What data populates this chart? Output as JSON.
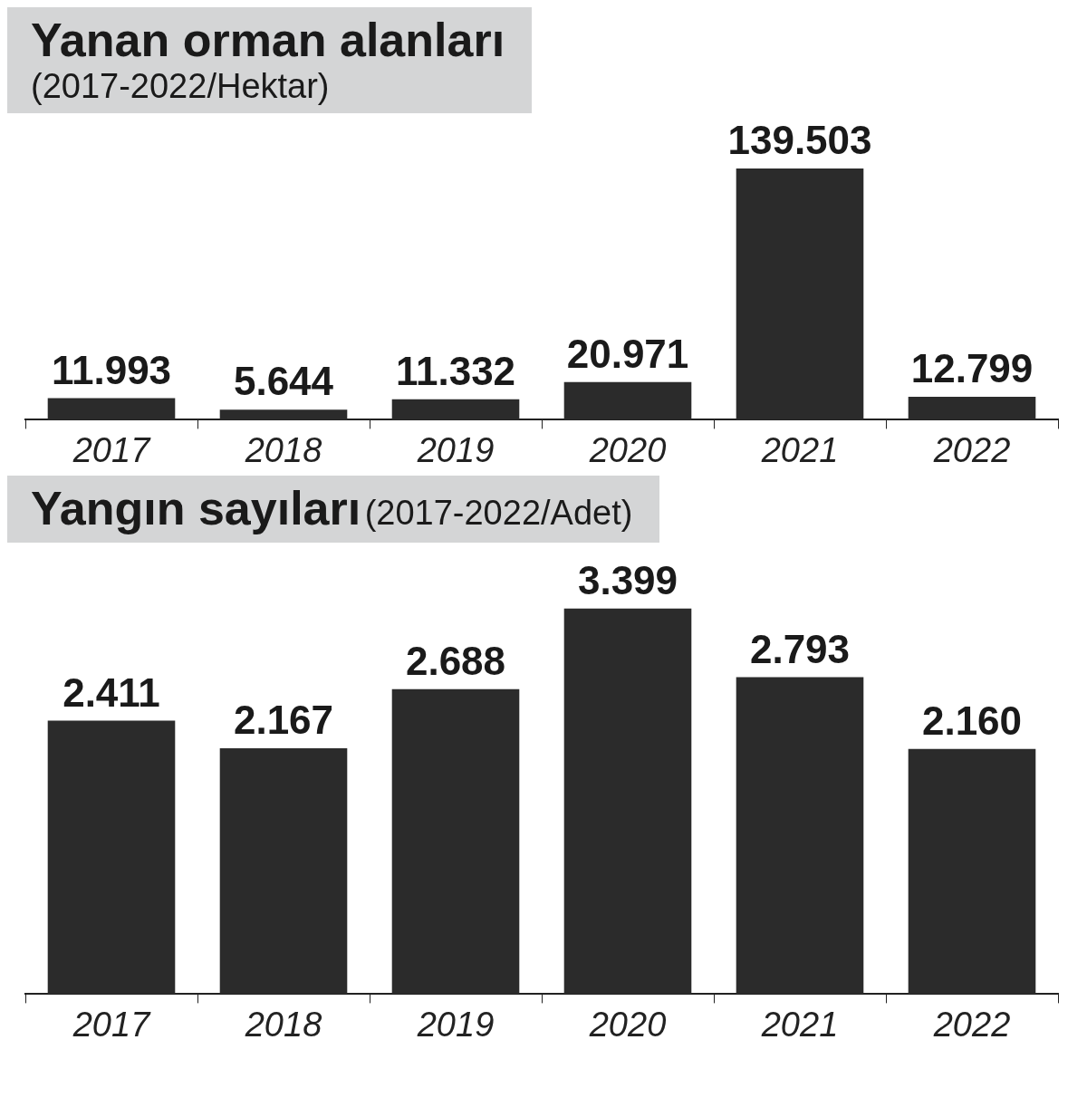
{
  "chart_data": [
    {
      "type": "bar",
      "title": "Yanan orman alanları",
      "subtitle": "(2017-2022/Hektar)",
      "categories": [
        "2017",
        "2018",
        "2019",
        "2020",
        "2021",
        "2022"
      ],
      "values": [
        11993,
        5644,
        11332,
        20971,
        139503,
        12799
      ],
      "value_labels": [
        "11.993",
        "5.644",
        "11.332",
        "20.971",
        "139.503",
        "12.799"
      ],
      "color": "#2b2b2b",
      "tick_labels": "x",
      "grid": false,
      "legend": false
    },
    {
      "type": "bar",
      "title": "Yangın sayıları",
      "subtitle": "(2017-2022/Adet)",
      "categories": [
        "2017",
        "2018",
        "2019",
        "2020",
        "2021",
        "2022"
      ],
      "values": [
        2411,
        2167,
        2688,
        3399,
        2793,
        2160
      ],
      "value_labels": [
        "2.411",
        "2.167",
        "2.688",
        "3.399",
        "2.793",
        "2.160"
      ],
      "color": "#2b2b2b",
      "tick_labels": "x",
      "grid": false,
      "legend": false
    }
  ]
}
